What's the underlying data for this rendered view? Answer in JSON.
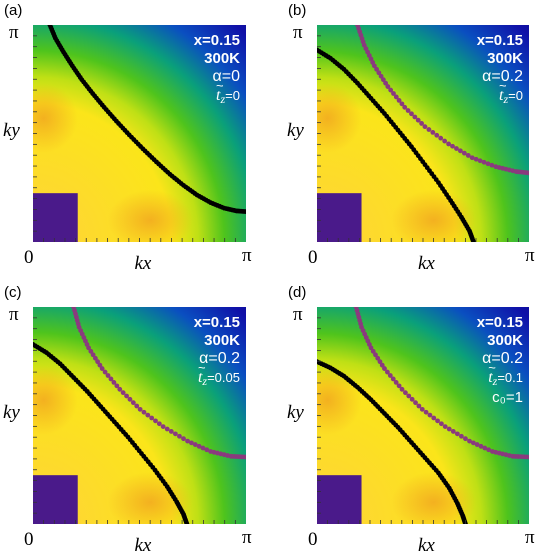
{
  "chart_data": [
    {
      "type": "scatter",
      "panel_label": "(a)",
      "xlabel": "kx",
      "ylabel": "ky",
      "x_ticks": [
        "0",
        "π"
      ],
      "y_ticks": [
        "π"
      ],
      "xlim": [
        0,
        3.14159
      ],
      "ylim": [
        0,
        3.14159
      ],
      "annotation": {
        "x": "x=0.15",
        "temp": "300K",
        "alpha": "α=0",
        "tz_symbol": "t",
        "tz_value": "=0",
        "extra": ""
      },
      "background": "spectral-weight colormap (yellow low-k to blue high-k)",
      "series": [
        {
          "color": "#000000",
          "points": [
            [
              0.25,
              3.14
            ],
            [
              0.33,
              2.95
            ],
            [
              0.45,
              2.75
            ],
            [
              0.58,
              2.55
            ],
            [
              0.72,
              2.35
            ],
            [
              0.88,
              2.15
            ],
            [
              1.05,
              1.95
            ],
            [
              1.23,
              1.75
            ],
            [
              1.42,
              1.55
            ],
            [
              1.62,
              1.35
            ],
            [
              1.82,
              1.16
            ],
            [
              2.02,
              0.98
            ],
            [
              2.22,
              0.82
            ],
            [
              2.42,
              0.68
            ],
            [
              2.62,
              0.57
            ],
            [
              2.82,
              0.49
            ],
            [
              3.0,
              0.45
            ],
            [
              3.14,
              0.44
            ]
          ]
        }
      ]
    },
    {
      "type": "scatter",
      "panel_label": "(b)",
      "xlabel": "kx",
      "ylabel": "ky",
      "x_ticks": [
        "0",
        "π"
      ],
      "y_ticks": [
        "π"
      ],
      "xlim": [
        0,
        3.14159
      ],
      "ylim": [
        0,
        3.14159
      ],
      "annotation": {
        "x": "x=0.15",
        "temp": "300K",
        "alpha": "α=0.2",
        "tz_symbol": "t",
        "tz_value": "=0",
        "extra": ""
      },
      "background": "spectral-weight colormap (yellow low-k to blue high-k)",
      "series": [
        {
          "color": "#000000",
          "points": [
            [
              0.0,
              2.78
            ],
            [
              0.2,
              2.66
            ],
            [
              0.4,
              2.5
            ],
            [
              0.6,
              2.3
            ],
            [
              0.8,
              2.08
            ],
            [
              1.0,
              1.86
            ],
            [
              1.2,
              1.62
            ],
            [
              1.4,
              1.38
            ],
            [
              1.6,
              1.12
            ],
            [
              1.8,
              0.86
            ],
            [
              1.98,
              0.6
            ],
            [
              2.14,
              0.36
            ],
            [
              2.26,
              0.16
            ],
            [
              2.32,
              0.0
            ]
          ]
        },
        {
          "color": "#8a3a7e",
          "points": [
            [
              0.6,
              3.14
            ],
            [
              0.7,
              2.85
            ],
            [
              0.85,
              2.55
            ],
            [
              1.05,
              2.25
            ],
            [
              1.3,
              1.95
            ],
            [
              1.6,
              1.67
            ],
            [
              1.95,
              1.42
            ],
            [
              2.3,
              1.22
            ],
            [
              2.65,
              1.09
            ],
            [
              2.95,
              1.02
            ],
            [
              3.14,
              1.0
            ]
          ]
        }
      ]
    },
    {
      "type": "scatter",
      "panel_label": "(c)",
      "xlabel": "kx",
      "ylabel": "ky",
      "x_ticks": [
        "0",
        "π"
      ],
      "y_ticks": [
        "π"
      ],
      "xlim": [
        0,
        3.14159
      ],
      "ylim": [
        0,
        3.14159
      ],
      "annotation": {
        "x": "x=0.15",
        "temp": "300K",
        "alpha": "α=0.2",
        "tz_symbol": "t",
        "tz_value": "=0.05",
        "extra": ""
      },
      "background": "spectral-weight colormap (yellow low-k to blue high-k)",
      "series": [
        {
          "color": "#000000",
          "points": [
            [
              0.0,
              2.6
            ],
            [
              0.2,
              2.48
            ],
            [
              0.4,
              2.32
            ],
            [
              0.6,
              2.12
            ],
            [
              0.8,
              1.92
            ],
            [
              1.0,
              1.7
            ],
            [
              1.2,
              1.48
            ],
            [
              1.4,
              1.26
            ],
            [
              1.6,
              1.02
            ],
            [
              1.8,
              0.78
            ],
            [
              1.98,
              0.54
            ],
            [
              2.12,
              0.32
            ],
            [
              2.22,
              0.14
            ],
            [
              2.27,
              0.0
            ]
          ]
        },
        {
          "color": "#8a3a7e",
          "points": [
            [
              0.6,
              3.14
            ],
            [
              0.68,
              2.85
            ],
            [
              0.82,
              2.55
            ],
            [
              1.02,
              2.25
            ],
            [
              1.28,
              1.95
            ],
            [
              1.58,
              1.66
            ],
            [
              1.92,
              1.41
            ],
            [
              2.28,
              1.2
            ],
            [
              2.62,
              1.05
            ],
            [
              2.92,
              0.98
            ],
            [
              3.14,
              0.97
            ]
          ]
        }
      ]
    },
    {
      "type": "scatter",
      "panel_label": "(d)",
      "xlabel": "kx",
      "ylabel": "ky",
      "x_ticks": [
        "0",
        "π"
      ],
      "y_ticks": [
        "π"
      ],
      "xlim": [
        0,
        3.14159
      ],
      "ylim": [
        0,
        3.14159
      ],
      "annotation": {
        "x": "x=0.15",
        "temp": "300K",
        "alpha": "α=0.2",
        "tz_symbol": "t",
        "tz_value": "=0.1",
        "extra": "c₀=1"
      },
      "background": "spectral-weight colormap (yellow low-k to blue high-k)",
      "series": [
        {
          "color": "#000000",
          "points": [
            [
              0.0,
              2.35
            ],
            [
              0.2,
              2.26
            ],
            [
              0.4,
              2.14
            ],
            [
              0.6,
              1.98
            ],
            [
              0.8,
              1.8
            ],
            [
              1.0,
              1.6
            ],
            [
              1.2,
              1.4
            ],
            [
              1.4,
              1.18
            ],
            [
              1.6,
              0.96
            ],
            [
              1.8,
              0.74
            ],
            [
              1.96,
              0.52
            ],
            [
              2.08,
              0.3
            ],
            [
              2.16,
              0.12
            ],
            [
              2.2,
              0.0
            ]
          ]
        },
        {
          "color": "#8a3a7e",
          "points": [
            [
              0.58,
              3.14
            ],
            [
              0.66,
              2.85
            ],
            [
              0.8,
              2.55
            ],
            [
              1.0,
              2.25
            ],
            [
              1.26,
              1.95
            ],
            [
              1.56,
              1.66
            ],
            [
              1.9,
              1.41
            ],
            [
              2.26,
              1.2
            ],
            [
              2.6,
              1.05
            ],
            [
              2.9,
              0.98
            ],
            [
              3.14,
              0.97
            ]
          ]
        }
      ]
    }
  ],
  "colors": {
    "fermi_black": "#000000",
    "fermi_purple": "#8a3a7e",
    "inset_square": "#4a1a8a",
    "text": "#000000",
    "annotation_text": "#ffffff"
  }
}
